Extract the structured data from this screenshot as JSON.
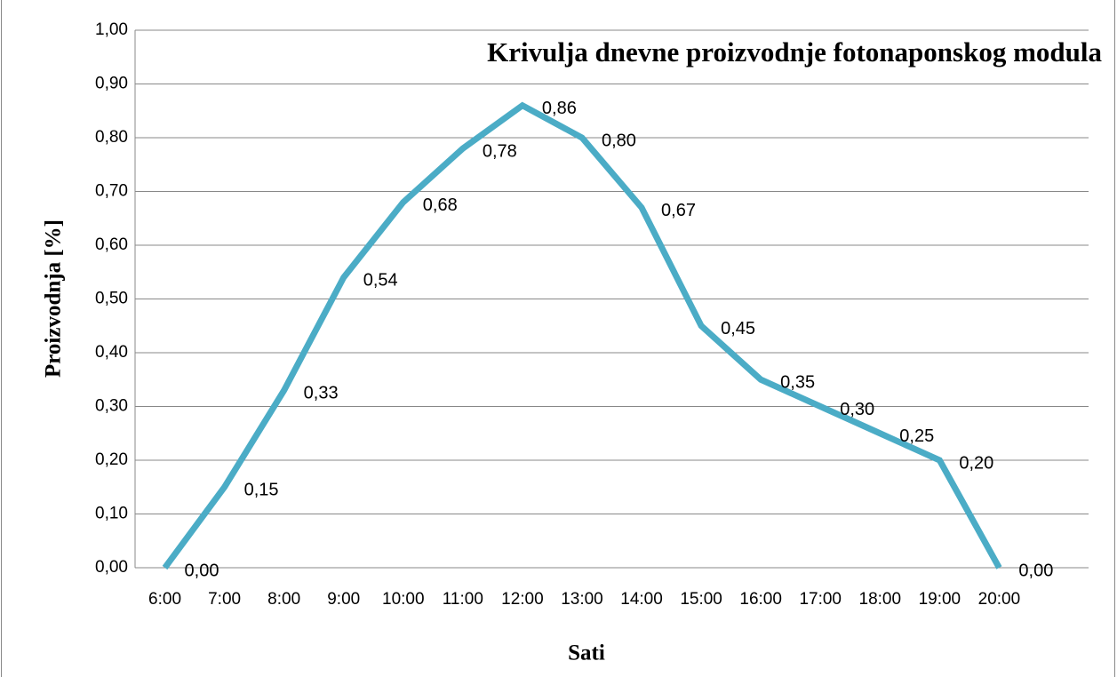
{
  "chart_data": {
    "type": "line",
    "title": "Krivulja dnevne proizvodnje fotonaponskog modula",
    "x_label": "Sati",
    "y_label": "Proizvodnja [%]",
    "categories": [
      "6:00",
      "7:00",
      "8:00",
      "9:00",
      "10:00",
      "11:00",
      "12:00",
      "13:00",
      "14:00",
      "15:00",
      "16:00",
      "17:00",
      "18:00",
      "19:00",
      "20:00",
      null
    ],
    "values": [
      0,
      0.15,
      0.33,
      0.54,
      0.68,
      0.78,
      0.86,
      0.8,
      0.67,
      0.45,
      0.35,
      0.3,
      0.25,
      0.2,
      0.0,
      null
    ],
    "value_labels": [
      "0,00",
      "0,15",
      "0,33",
      "0,54",
      "0,68",
      "0,78",
      "0,86",
      "0,80",
      "0,67",
      "0,45",
      "0,35",
      "0,30",
      "0,25",
      "0,20",
      "0,00",
      null
    ],
    "color": "#4bacc6",
    "ylim": [
      0,
      1
    ],
    "yticks": [
      {
        "value": 0,
        "label": "0,00"
      },
      {
        "value": 0.1,
        "label": "0,10"
      },
      {
        "value": 0.2,
        "label": "0,20"
      },
      {
        "value": 0.3,
        "label": "0,30"
      },
      {
        "value": 0.4,
        "label": "0,40"
      },
      {
        "value": 0.5,
        "label": "0,50"
      },
      {
        "value": 0.6,
        "label": "0,60"
      },
      {
        "value": 0.7,
        "label": "0,70"
      },
      {
        "value": 0.8,
        "label": "0,80"
      },
      {
        "value": 0.9,
        "label": "0,90"
      },
      {
        "value": 1,
        "label": "1,00"
      }
    ],
    "grid": true
  }
}
